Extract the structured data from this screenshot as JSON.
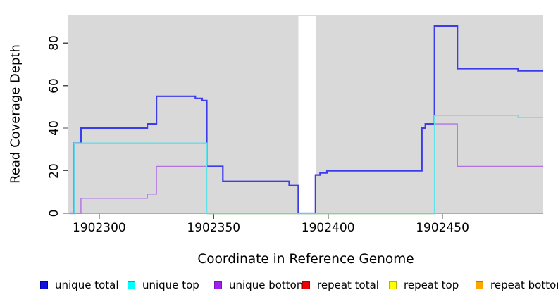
{
  "chart_data": {
    "type": "line",
    "subtype": "step",
    "title": "",
    "xlabel": "Coordinate in Reference Genome",
    "ylabel": "Read Coverage Depth",
    "xlim": [
      1902286.5,
      1902494
    ],
    "ylim": [
      0,
      93
    ],
    "grid": false,
    "plot_bg_color": "#d9d9d9",
    "axis_color": "#333333",
    "tick_color": "#4d4d4d",
    "x_ticks": [
      {
        "value": 1902300,
        "label": "1902300"
      },
      {
        "value": 1902350,
        "label": "1902350"
      },
      {
        "value": 1902400,
        "label": "1902400"
      },
      {
        "value": 1902450,
        "label": "1902450"
      }
    ],
    "y_ticks": [
      {
        "value": 0,
        "label": "0"
      },
      {
        "value": 20,
        "label": "20"
      },
      {
        "value": 40,
        "label": "40"
      },
      {
        "value": 60,
        "label": "60"
      },
      {
        "value": 80,
        "label": "80"
      }
    ],
    "gap_region": {
      "x_start": 1902387,
      "x_end": 1902394.5,
      "color": "#ffffff",
      "note": "white masked band, full plot height, coverage drops to 0"
    },
    "series": [
      {
        "name": "unique total",
        "color": "#3c3cea",
        "width": 2.2,
        "points": [
          [
            1902287,
            0
          ],
          [
            1902289,
            33
          ],
          [
            1902292,
            40
          ],
          [
            1902321,
            42
          ],
          [
            1902325,
            55
          ],
          [
            1902342,
            54
          ],
          [
            1902345,
            53
          ],
          [
            1902347,
            22
          ],
          [
            1902354,
            15
          ],
          [
            1902383,
            13
          ],
          [
            1902387,
            0
          ],
          [
            1902394.5,
            18
          ],
          [
            1902396.5,
            19
          ],
          [
            1902399.5,
            20
          ],
          [
            1902441,
            40
          ],
          [
            1902442.5,
            42
          ],
          [
            1902446.5,
            88
          ],
          [
            1902456.5,
            68
          ],
          [
            1902483,
            67
          ]
        ]
      },
      {
        "name": "unique top",
        "color": "#62e3ec",
        "width": 1.6,
        "points": [
          [
            1902287,
            0
          ],
          [
            1902289,
            33
          ],
          [
            1902347,
            0
          ],
          [
            1902446.5,
            46
          ],
          [
            1902483,
            45
          ]
        ]
      },
      {
        "name": "unique bottom",
        "color": "#b272e2",
        "width": 1.4,
        "points": [
          [
            1902287,
            0
          ],
          [
            1902292,
            7
          ],
          [
            1902321,
            9
          ],
          [
            1902325,
            22
          ],
          [
            1902354,
            15
          ],
          [
            1902383,
            13
          ],
          [
            1902387,
            0
          ],
          [
            1902394.5,
            18
          ],
          [
            1902396.5,
            19
          ],
          [
            1902399.5,
            20
          ],
          [
            1902441,
            40
          ],
          [
            1902442.5,
            42
          ],
          [
            1902456.5,
            22
          ]
        ]
      },
      {
        "name": "repeat total",
        "color": "#dd2222",
        "width": 1.5,
        "points": [
          [
            1902286.5,
            0
          ]
        ]
      },
      {
        "name": "repeat top",
        "color": "#f2f22a",
        "width": 1.5,
        "points": [
          [
            1902286.5,
            0
          ]
        ]
      },
      {
        "name": "repeat bottom",
        "color": "#ff9d00",
        "width": 1.8,
        "points": [
          [
            1902286.5,
            0
          ]
        ]
      }
    ],
    "baseline_overlay": {
      "color": "#8fce8f",
      "x_start": 1902347,
      "x_end": 1902446.5,
      "y": 0,
      "note": "greenish blend where unique-top and repeat lines overlap at zero"
    },
    "legend": [
      {
        "label": "unique total",
        "fill": "#1010e0",
        "border": "#0000a8"
      },
      {
        "label": "unique top",
        "fill": "#00ffff",
        "border": "#00b0b0"
      },
      {
        "label": "unique bottom",
        "fill": "#a020f0",
        "border": "#7a14bc"
      },
      {
        "label": "repeat total",
        "fill": "#ee0000",
        "border": "#a80000"
      },
      {
        "label": "repeat top",
        "fill": "#ffff00",
        "border": "#b3b300"
      },
      {
        "label": "repeat bottom",
        "fill": "#ffa500",
        "border": "#bb7a00"
      }
    ],
    "legend_position": "bottom"
  }
}
